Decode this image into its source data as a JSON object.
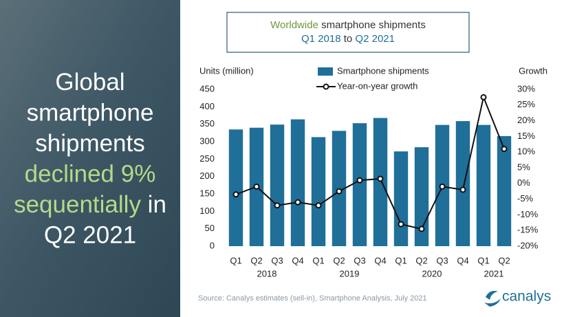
{
  "headline": [
    [
      {
        "text": "Global",
        "color": "#ffffff"
      }
    ],
    [
      {
        "text": "smartphone",
        "color": "#ffffff"
      }
    ],
    [
      {
        "text": "shipments",
        "color": "#ffffff"
      }
    ],
    [
      {
        "text": "declined 9%",
        "color": "#b5d98a"
      }
    ],
    [
      {
        "text": "sequentially",
        "color": "#b5d98a"
      },
      {
        "text": " in",
        "color": "#ffffff"
      }
    ],
    [
      {
        "text": "Q2 2021",
        "color": "#ffffff"
      }
    ]
  ],
  "chart_data": {
    "type": "bar_line",
    "title": [
      [
        {
          "text": "Worldwide",
          "color": "#6a9a3a"
        },
        {
          "text": " smartphone shipments",
          "color": "#333333"
        }
      ],
      [
        {
          "text": "Q1 2018",
          "color": "#1f6f99"
        },
        {
          "text": " to ",
          "color": "#333333"
        },
        {
          "text": "Q2 2021",
          "color": "#1f6f99"
        }
      ]
    ],
    "y_label": "Units (million)",
    "y2_label": "Growth",
    "categories": [
      "Q1",
      "Q2",
      "Q3",
      "Q4",
      "Q1",
      "Q2",
      "Q3",
      "Q4",
      "Q1",
      "Q2",
      "Q3",
      "Q4",
      "Q1",
      "Q2"
    ],
    "year_groups": [
      {
        "label": "2018",
        "count": 4
      },
      {
        "label": "2019",
        "count": 4
      },
      {
        "label": "2020",
        "count": 4
      },
      {
        "label": "2021",
        "count": 2
      }
    ],
    "series": [
      {
        "name": "Smartphone shipments",
        "type": "bar",
        "color": "#1f6f99",
        "values": [
          335,
          340,
          349,
          364,
          313,
          331,
          353,
          368,
          272,
          284,
          348,
          359,
          348,
          316
        ]
      },
      {
        "name": "Year-on-year growth",
        "type": "line",
        "axis": "y2",
        "color": "#111111",
        "values": [
          -3.5,
          -1,
          -7,
          -6,
          -7,
          -2.5,
          1,
          1.5,
          -13,
          -14.5,
          -1,
          -2,
          27.5,
          11
        ]
      }
    ],
    "ylim": [
      0,
      450
    ],
    "yticks": [
      0,
      50,
      100,
      150,
      200,
      250,
      300,
      350,
      400,
      450
    ],
    "y2lim": [
      -20,
      30
    ],
    "y2ticks": [
      {
        "value": -20,
        "label": "-20%"
      },
      {
        "value": -15,
        "label": "-15%"
      },
      {
        "value": -10,
        "label": "-10%"
      },
      {
        "value": -5,
        "label": "-5%"
      },
      {
        "value": 0,
        "label": "0%"
      },
      {
        "value": 5,
        "label": "5%"
      },
      {
        "value": 10,
        "label": "10%"
      },
      {
        "value": 15,
        "label": "15%"
      },
      {
        "value": 20,
        "label": "20%"
      },
      {
        "value": 25,
        "label": "25%"
      },
      {
        "value": 30,
        "label": "30%"
      }
    ],
    "source": "Source: Canalys estimates (sell-in), Smartphone Analysis, July 2021"
  },
  "logo": "canalys"
}
